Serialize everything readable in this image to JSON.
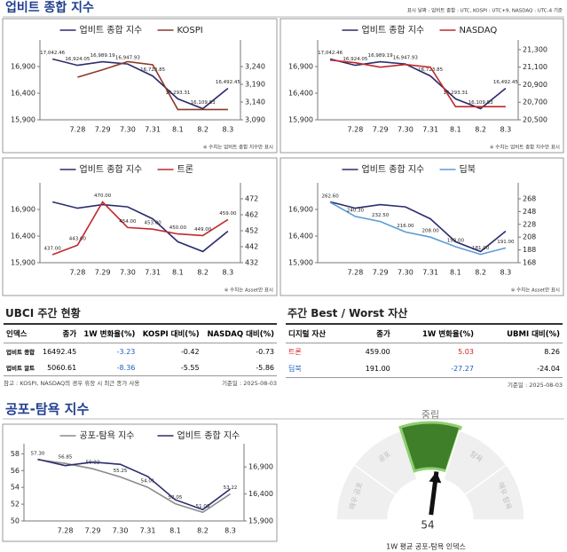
{
  "header": {
    "title": "업비트 종합 지수",
    "note": "표시 날짜 : 업비트 종합 : UTC, KOSPI : UTC+9, NASDAQ : UTC-4 기준"
  },
  "chart_data": [
    {
      "type": "line",
      "categories": [
        null,
        "7.28",
        "7.29",
        "7.30",
        "7.31",
        "8.1",
        "8.2",
        "8.3"
      ],
      "series": [
        {
          "name": "업비트 종합 지수",
          "color": "#2b2d6e",
          "axis": "y",
          "values": [
            17042.46,
            16924.05,
            16989.19,
            16947.93,
            16723.85,
            16293.31,
            16109.83,
            16492.45
          ],
          "value_labels": [
            "17,042.46",
            "16,924.05",
            "16,989.19",
            "16,947.93",
            "16,723.85",
            "16,293.31",
            "16,109.83",
            "16,492.45"
          ]
        },
        {
          "name": "KOSPI",
          "color": "#8b3a2a",
          "axis": "y2",
          "values": [
            null,
            3210,
            3231,
            3254,
            3245,
            3119,
            3119,
            3119
          ]
        }
      ],
      "ylim": [
        15900,
        17400
      ],
      "yticks": [
        {
          "value": 15900,
          "label": "15,900"
        },
        {
          "value": 16400,
          "label": "16,400"
        },
        {
          "value": 16900,
          "label": "16,900"
        }
      ],
      "y2lim": [
        3090,
        3315
      ],
      "y2ticks": [
        {
          "value": 3090,
          "label": "3,090"
        },
        {
          "value": 3140,
          "label": "3,140"
        },
        {
          "value": 3190,
          "label": "3,190"
        },
        {
          "value": 3240,
          "label": "3,240"
        }
      ],
      "note": "※ 수치는 업비트 종합 지수만 표시"
    },
    {
      "type": "line",
      "categories": [
        null,
        "7.28",
        "7.29",
        "7.30",
        "7.31",
        "8.1",
        "8.2",
        "8.3"
      ],
      "series": [
        {
          "name": "업비트 종합 지수",
          "color": "#2b2d6e",
          "axis": "y",
          "values": [
            17042.46,
            16924.05,
            16989.19,
            16947.93,
            16723.85,
            16293.31,
            16109.83,
            16492.45
          ],
          "value_labels": [
            "17,042.46",
            "16,924.05",
            "16,989.19",
            "16,947.93",
            "16,723.85",
            "16,293.31",
            "16,109.83",
            "16,492.45"
          ]
        },
        {
          "name": "NASDAQ",
          "color": "#c0282d",
          "axis": "y2",
          "values": [
            21180,
            21150,
            21100,
            21130,
            21100,
            20650,
            20650,
            20650
          ]
        }
      ],
      "ylim": [
        15900,
        17400
      ],
      "yticks": [
        {
          "value": 15900,
          "label": "15,900"
        },
        {
          "value": 16400,
          "label": "16,400"
        },
        {
          "value": 16900,
          "label": "16,900"
        }
      ],
      "y2lim": [
        20500,
        21410
      ],
      "y2ticks": [
        {
          "value": 20500,
          "label": "20,500"
        },
        {
          "value": 20700,
          "label": "20,700"
        },
        {
          "value": 20900,
          "label": "20,900"
        },
        {
          "value": 21100,
          "label": "21,100"
        },
        {
          "value": 21300,
          "label": "21,300"
        }
      ],
      "note": "※ 수치는 업비트 종합 지수만 표시"
    },
    {
      "type": "line",
      "categories": [
        null,
        "7.28",
        "7.29",
        "7.30",
        "7.31",
        "8.1",
        "8.2",
        "8.3"
      ],
      "series": [
        {
          "name": "업비트 종합 지수",
          "color": "#2b2d6e",
          "axis": "y",
          "values": [
            17042.46,
            16924.05,
            16989.19,
            16947.93,
            16723.85,
            16293.31,
            16109.83,
            16492.45
          ]
        },
        {
          "name": "트론",
          "color": "#c0282d",
          "axis": "y2",
          "values": [
            437,
            443,
            470,
            454,
            453,
            450,
            449,
            459
          ],
          "value_labels": [
            "437.00",
            "443.00",
            "470.00",
            "454.00",
            "453.00",
            "450.00",
            "449.00",
            "459.00"
          ]
        }
      ],
      "ylim": [
        15900,
        17400
      ],
      "yticks": [
        {
          "value": 15900,
          "label": "15,900"
        },
        {
          "value": 16400,
          "label": "16,400"
        },
        {
          "value": 16900,
          "label": "16,900"
        }
      ],
      "y2lim": [
        432,
        482
      ],
      "y2ticks": [
        432,
        442,
        452,
        462,
        472
      ],
      "note": "※ 수치는 Asset만 표시"
    },
    {
      "type": "line",
      "categories": [
        null,
        "7.28",
        "7.29",
        "7.30",
        "7.31",
        "8.1",
        "8.2",
        "8.3"
      ],
      "series": [
        {
          "name": "업비트 종합 지수",
          "color": "#2b2d6e",
          "axis": "y",
          "values": [
            17042.46,
            16924.05,
            16989.19,
            16947.93,
            16723.85,
            16293.31,
            16109.83,
            16492.45
          ]
        },
        {
          "name": "딥북",
          "color": "#5b9bd5",
          "axis": "y2",
          "values": [
            262.6,
            240.3,
            232.5,
            216,
            208,
            193,
            181,
            191
          ],
          "value_labels": [
            "262.60",
            "240.30",
            "232.50",
            "216.00",
            "208.00",
            "193.00",
            "181.00",
            "191.00"
          ]
        }
      ],
      "ylim": [
        15900,
        17400
      ],
      "yticks": [
        {
          "value": 15900,
          "label": "15,900"
        },
        {
          "value": 16400,
          "label": "16,400"
        },
        {
          "value": 16900,
          "label": "16,900"
        }
      ],
      "y2lim": [
        168,
        293
      ],
      "y2ticks": [
        168,
        188,
        208,
        228,
        248,
        268
      ],
      "note": "※ 수치는 Asset만 표시"
    },
    {
      "type": "line",
      "categories": [
        null,
        "7.28",
        "7.29",
        "7.30",
        "7.31",
        "8.1",
        "8.2",
        "8.3"
      ],
      "series": [
        {
          "name": "공포-탐욕 지수",
          "color": "#8c8c8c",
          "axis": "y",
          "values": [
            57.3,
            56.85,
            56.22,
            55.25,
            54.01,
            52.05,
            51.03,
            53.22
          ],
          "value_labels": [
            "57.30",
            "56.85",
            "56.22",
            "55.25",
            "54.01",
            "52.05",
            "51.03",
            "53.22"
          ]
        },
        {
          "name": "업비트 종합 지수",
          "color": "#2b2d6e",
          "axis": "y2",
          "values": [
            17042.46,
            16924.05,
            16989.19,
            16947.93,
            16723.85,
            16293.31,
            16109.83,
            16492.45
          ]
        }
      ],
      "ylim": [
        50,
        59.2
      ],
      "yticks": [
        50,
        52,
        54,
        56,
        58
      ],
      "y2lim": [
        15900,
        17330
      ],
      "y2ticks": [
        {
          "value": 15900,
          "label": "15,900"
        },
        {
          "value": 16400,
          "label": "16,400"
        },
        {
          "value": 16900,
          "label": "16,900"
        }
      ]
    },
    {
      "type": "gauge",
      "lim": [
        0,
        100
      ],
      "value": 54,
      "segments": [
        "매우 공포",
        "공포",
        "중립",
        "탐욕",
        "매우 탐욕"
      ],
      "highlight": 2,
      "caption": "1W 평균 공포-탐욕 인덱스"
    }
  ],
  "ubci": {
    "title": "UBCI 주간 현황",
    "columns": [
      "인덱스",
      "종가",
      "1W 변화율(%)",
      "KOSPI 대비(%)",
      "NASDAQ 대비(%)"
    ],
    "rows": [
      [
        "업비트 종합",
        "16492.45",
        "-3.23",
        "-0.42",
        "-0.73"
      ],
      [
        "업비트 알트",
        "5060.61",
        "-8.36",
        "-5.55",
        "-5.86"
      ]
    ],
    "note": "참고 : KOSPI, NASDAQ의 경우 휴장 시 최근 종가 사용",
    "date": "기준일 : 2025-08-03"
  },
  "best_worst": {
    "title": "주간 Best / Worst 자산",
    "columns": [
      "디지털 자산",
      "종가",
      "1W 변화율(%)",
      "UBMI 대비(%)"
    ],
    "rows": [
      [
        "트론",
        "459.00",
        "5.03",
        "8.26"
      ],
      [
        "딥북",
        "191.00",
        "-27.27",
        "-24.04"
      ]
    ],
    "date": "기준일 : 2025-08-03"
  },
  "fear_greed_title": "공포-탐욕 지수"
}
